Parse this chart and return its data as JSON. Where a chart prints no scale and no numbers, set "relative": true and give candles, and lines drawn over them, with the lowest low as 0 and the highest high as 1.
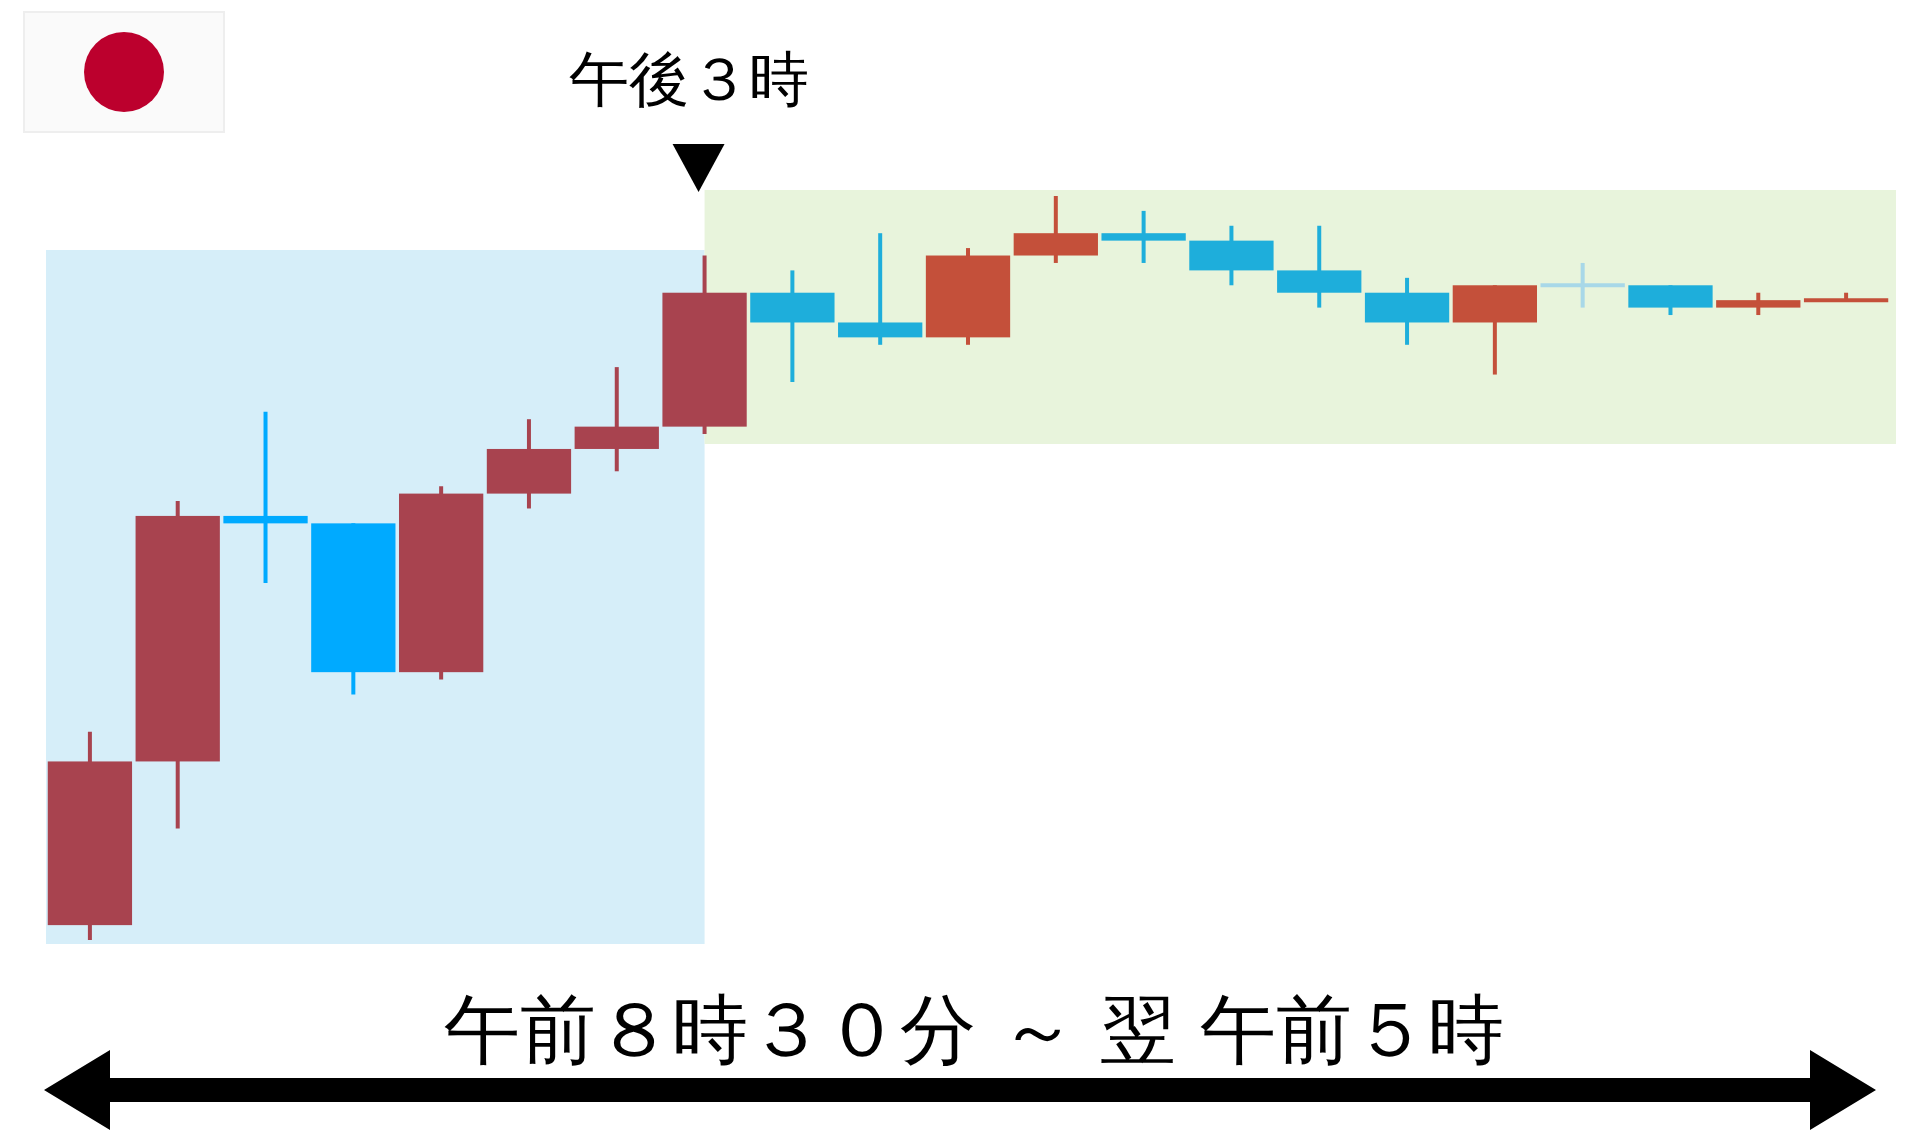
{
  "chart_data": {
    "type": "candlestick",
    "relative": true,
    "categories": [
      null,
      null,
      null,
      null,
      null,
      null,
      null,
      null,
      null,
      null,
      null,
      null,
      null,
      null,
      null,
      null,
      null,
      null,
      null,
      null,
      null
    ],
    "ohlc": [
      [
        0.02,
        0.28,
        0,
        0.24
      ],
      [
        0.24,
        0.59,
        0.15,
        0.57
      ],
      [
        0.57,
        0.71,
        0.48,
        0.56
      ],
      [
        0.56,
        0.56,
        0.33,
        0.36
      ],
      [
        0.36,
        0.61,
        0.35,
        0.6
      ],
      [
        0.6,
        0.7,
        0.58,
        0.66
      ],
      [
        0.66,
        0.77,
        0.63,
        0.69
      ],
      [
        0.69,
        0.92,
        0.68,
        0.87
      ],
      [
        0.87,
        0.9,
        0.75,
        0.83
      ],
      [
        0.83,
        0.95,
        0.8,
        0.81
      ],
      [
        0.81,
        0.93,
        0.8,
        0.92
      ],
      [
        0.92,
        1,
        0.91,
        0.95
      ],
      [
        0.95,
        0.98,
        0.91,
        0.94
      ],
      [
        0.94,
        0.96,
        0.88,
        0.9
      ],
      [
        0.9,
        0.96,
        0.85,
        0.87
      ],
      [
        0.87,
        0.89,
        0.8,
        0.83
      ],
      [
        0.83,
        0.88,
        0.76,
        0.88
      ],
      [
        0.88,
        0.91,
        0.85,
        0.88
      ],
      [
        0.88,
        0.88,
        0.84,
        0.85
      ],
      [
        0.85,
        0.87,
        0.84,
        0.86
      ],
      [
        0.86,
        0.87,
        0.86,
        0.86
      ]
    ],
    "colors": [
      "#a8434f",
      "#a8434f",
      "#00aaff",
      "#00aaff",
      "#a8434f",
      "#a8434f",
      "#a8434f",
      "#a8434f",
      "#1eaedb",
      "#1eaedb",
      "#c4503a",
      "#c4503a",
      "#1eaedb",
      "#1eaedb",
      "#1eaedb",
      "#1eaedb",
      "#c4503a",
      "#a8d8e8",
      "#1eaedb",
      "#c4503a",
      "#c4503a"
    ],
    "annotations": [
      "午後３時",
      "午前８時３０分 ～ 翌 午前５時"
    ]
  }
}
